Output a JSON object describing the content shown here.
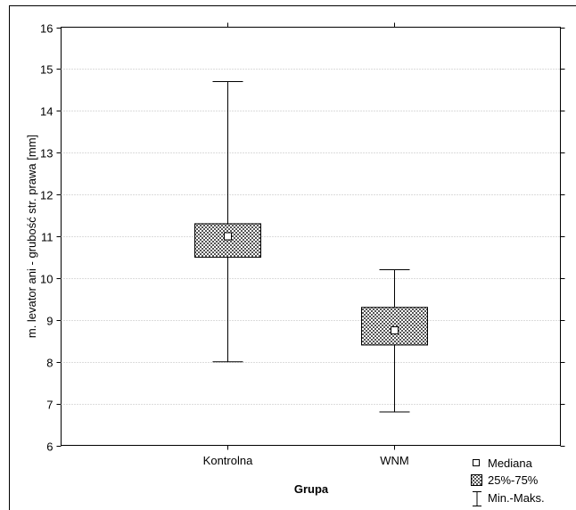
{
  "chart_data": {
    "type": "box",
    "xlabel": "Grupa",
    "ylabel": "m. levator ani - grubość str. prawa [mm]",
    "ylim": [
      6,
      16
    ],
    "yticks": [
      "6",
      "7",
      "8",
      "9",
      "10",
      "11",
      "12",
      "13",
      "14",
      "15",
      "16"
    ],
    "grid": "horizontal dotted",
    "categories": [
      "Kontrolna",
      "WNM"
    ],
    "boxes": [
      {
        "category": "Kontrolna",
        "min": 8.0,
        "q1": 10.5,
        "median": 11.0,
        "q3": 11.3,
        "max": 14.7
      },
      {
        "category": "WNM",
        "min": 6.8,
        "q1": 8.4,
        "median": 8.75,
        "q3": 9.3,
        "max": 10.2
      }
    ],
    "legend": {
      "position": "bottom-right",
      "items": [
        "Mediana",
        "25%-75%",
        "Min.-Maks."
      ]
    }
  }
}
